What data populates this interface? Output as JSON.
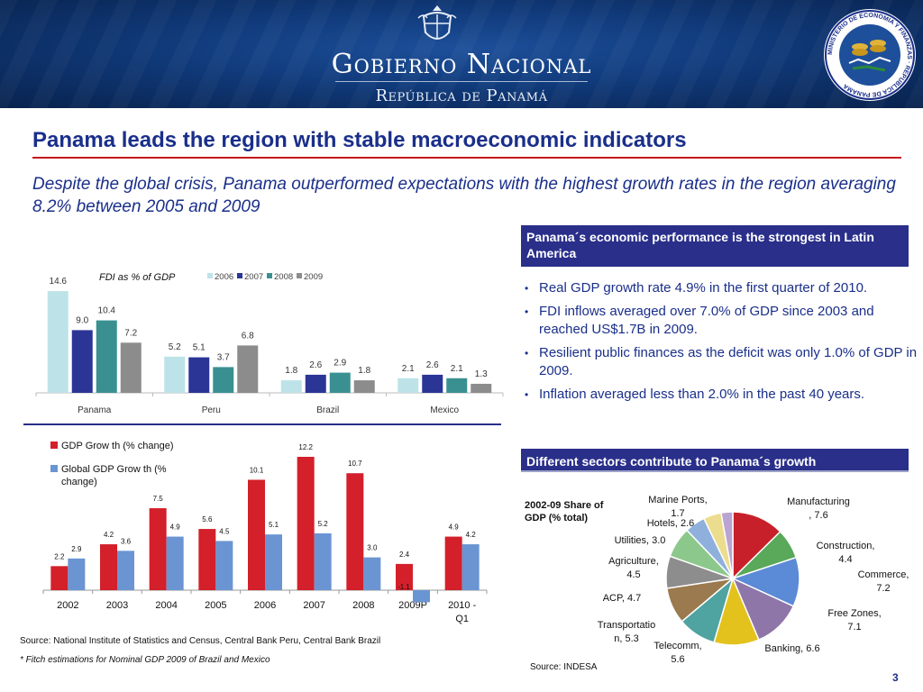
{
  "header": {
    "title": "Gobierno Nacional",
    "subtitle": "República de Panamá",
    "seal_text": "MINISTERIO DE ECONOMIA Y FINANZAS · REPUBLICA DE PANAMA"
  },
  "page": {
    "title": "Panama leads the region with stable macroeconomic indicators",
    "subtitle": "Despite the global crisis, Panama outperformed expectations with the highest growth rates in the region averaging 8.2% between 2005 and 2009",
    "page_number": "3"
  },
  "panel1": {
    "header": "Panama´s economic performance is the strongest in Latin America",
    "bullets": [
      "Real GDP growth rate 4.9% in the first quarter of 2010.",
      "FDI inflows averaged over 7.0% of GDP since 2003 and reached US$1.7B in 2009.",
      "Resilient public finances as the deficit was only 1.0% of GDP in 2009.",
      "Inflation averaged less than 2.0% in the past 40 years."
    ]
  },
  "panel2": {
    "header": "Different sectors contribute to Panama´s growth"
  },
  "sources": {
    "left": "Source:  National Institute of Statistics and Census, Central Bank Peru, Central Bank Brazil",
    "note": "* Fitch estimations for Nominal GDP 2009 of Brazil and Mexico",
    "right": "Source:  INDESA"
  },
  "colors": {
    "navy": "#1a2f8a",
    "red": "#c4171d"
  },
  "chart_data": [
    {
      "type": "bar",
      "title": "FDI as % of GDP",
      "categories": [
        "Panama",
        "Peru",
        "Brazil",
        "Mexico"
      ],
      "series": [
        {
          "name": "2006",
          "color": "#bde3e8",
          "values": [
            14.6,
            5.2,
            1.8,
            2.1
          ]
        },
        {
          "name": "2007",
          "color": "#2b3596",
          "values": [
            9.0,
            5.1,
            2.6,
            2.6
          ]
        },
        {
          "name": "2008",
          "color": "#3a9090",
          "values": [
            10.4,
            3.7,
            2.9,
            2.1
          ]
        },
        {
          "name": "2009",
          "color": "#8c8c8c",
          "values": [
            7.2,
            6.8,
            1.8,
            1.3
          ]
        }
      ],
      "legend": "top",
      "ylim": [
        0,
        15
      ]
    },
    {
      "type": "bar",
      "categories": [
        "2002",
        "2003",
        "2004",
        "2005",
        "2006",
        "2007",
        "2008",
        "2009P",
        "2010 - Q1"
      ],
      "series": [
        {
          "name": "GDP Grow th (% change)",
          "color": "#d3202a",
          "values": [
            2.2,
            4.2,
            7.5,
            5.6,
            10.1,
            12.2,
            10.7,
            2.4,
            4.9
          ]
        },
        {
          "name": "Global GDP Grow th (% change)",
          "color": "#6a95d2",
          "values": [
            2.9,
            3.6,
            4.9,
            4.5,
            5.1,
            5.2,
            3.0,
            -1.1,
            4.2
          ]
        }
      ],
      "legend": "top-left",
      "ylim": [
        -1.5,
        12.5
      ]
    },
    {
      "type": "pie",
      "title": "2002-09 Share of GDP  (% total)",
      "slices": [
        {
          "label": "Manufacturing",
          "value": 7.6,
          "text": "Manufacturing , 7.6",
          "color": "#c8202a"
        },
        {
          "label": "Construction",
          "value": 4.4,
          "text": "Construction, 4.4",
          "color": "#5aa85a"
        },
        {
          "label": "Commerce",
          "value": 7.2,
          "text": "Commerce, 7.2",
          "color": "#5b8ad6"
        },
        {
          "label": "Free Zones",
          "value": 7.1,
          "text": "Free Zones, 7.1",
          "color": "#8f76a8"
        },
        {
          "label": "Banking",
          "value": 6.6,
          "text": "Banking, 6.6",
          "color": "#e3c21e"
        },
        {
          "label": "Telecomm",
          "value": 5.6,
          "text": "Telecomm, 5.6",
          "color": "#4fa3a0"
        },
        {
          "label": "Transportation",
          "value": 5.3,
          "text": "Transportation, 5.3",
          "color": "#9a7a4e"
        },
        {
          "label": "ACP",
          "value": 4.7,
          "text": "ACP, 4.7",
          "color": "#8d8d8d"
        },
        {
          "label": "Agriculture",
          "value": 4.5,
          "text": "Agriculture, 4.5",
          "color": "#8cc88c"
        },
        {
          "label": "Utilities",
          "value": 3.0,
          "text": "Utilities, 3.0",
          "color": "#8fb0dc"
        },
        {
          "label": "Hotels",
          "value": 2.6,
          "text": "Hotels, 2.6",
          "color": "#ecdc8e"
        },
        {
          "label": "Marine Ports",
          "value": 1.7,
          "text": "Marine Ports, 1.7",
          "color": "#b9a4d2"
        }
      ]
    }
  ]
}
